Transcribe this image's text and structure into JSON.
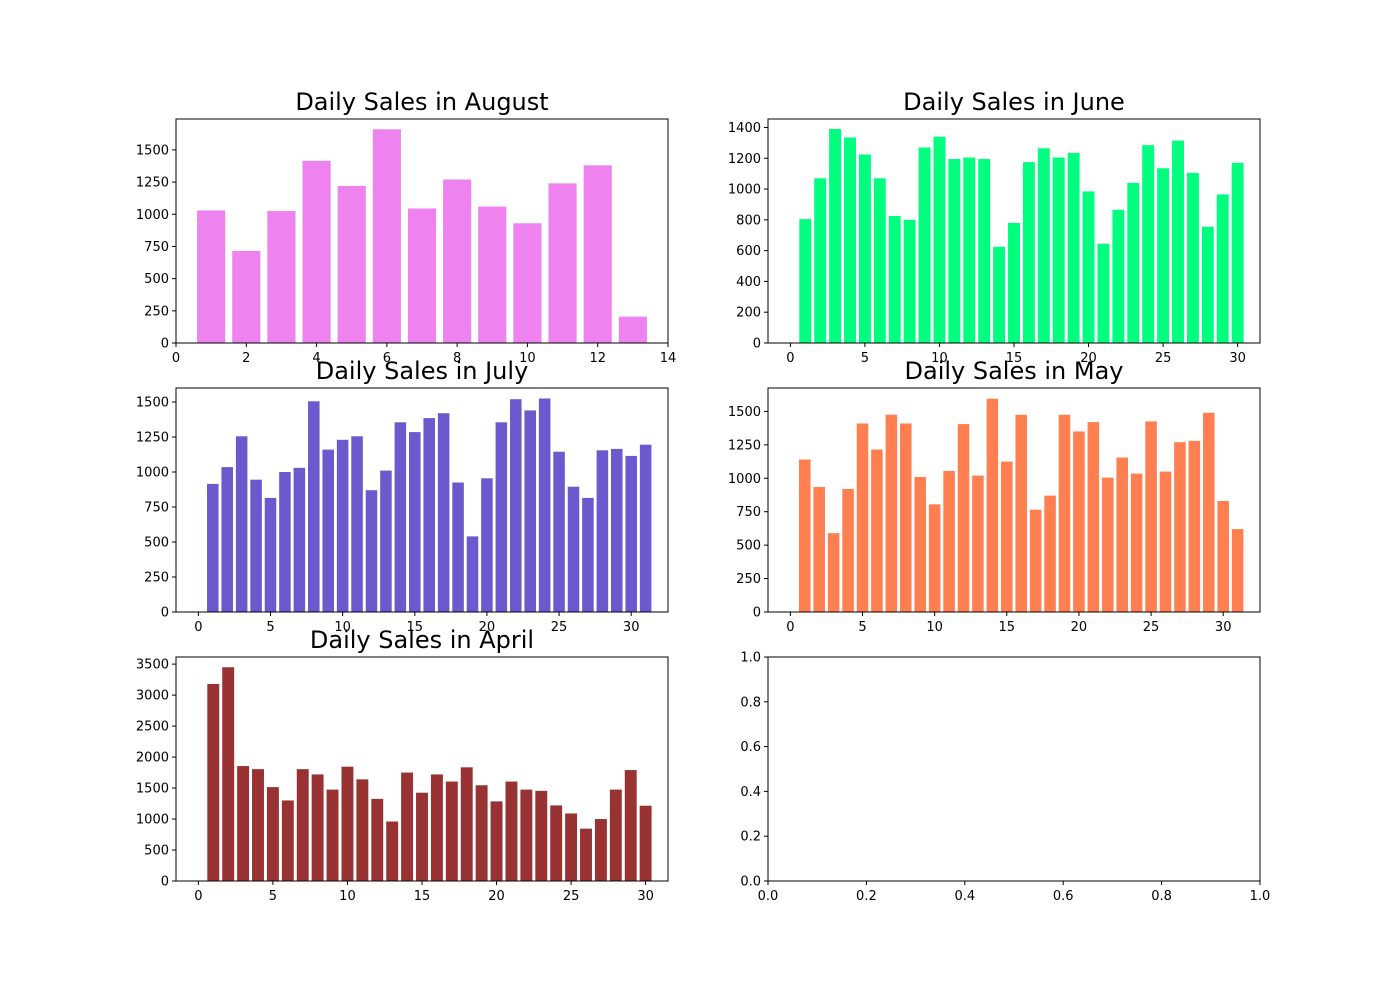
{
  "chart_data": [
    {
      "type": "bar",
      "title": "Daily Sales in August",
      "color": "#ee82ee",
      "x": [
        1,
        2,
        3,
        4,
        5,
        6,
        7,
        8,
        9,
        10,
        11,
        12,
        13
      ],
      "values": [
        1030,
        715,
        1025,
        1415,
        1220,
        1660,
        1045,
        1270,
        1060,
        930,
        1240,
        1380,
        205
      ],
      "xlim": [
        0,
        14
      ],
      "ylim": [
        0,
        1740
      ],
      "xticks": [
        0,
        2,
        4,
        6,
        8,
        10,
        12,
        14
      ],
      "yticks": [
        0,
        250,
        500,
        750,
        1000,
        1250,
        1500
      ],
      "xlabel": "",
      "ylabel": ""
    },
    {
      "type": "bar",
      "title": "Daily Sales in June",
      "color": "#00ff7f",
      "x": [
        1,
        2,
        3,
        4,
        5,
        6,
        7,
        8,
        9,
        10,
        11,
        12,
        13,
        14,
        15,
        16,
        17,
        18,
        19,
        20,
        21,
        22,
        23,
        24,
        25,
        26,
        27,
        28,
        29,
        30
      ],
      "values": [
        805,
        1070,
        1390,
        1335,
        1225,
        1070,
        825,
        800,
        1270,
        1340,
        1195,
        1205,
        1195,
        625,
        780,
        1175,
        1265,
        1205,
        1235,
        985,
        645,
        865,
        1040,
        1285,
        1135,
        1315,
        1105,
        755,
        965,
        1170
      ],
      "xlim": [
        -1.5,
        31.5
      ],
      "ylim": [
        0,
        1455
      ],
      "xticks": [
        0,
        5,
        10,
        15,
        20,
        25,
        30
      ],
      "yticks": [
        0,
        200,
        400,
        600,
        800,
        1000,
        1200,
        1400
      ],
      "xlabel": "",
      "ylabel": ""
    },
    {
      "type": "bar",
      "title": "Daily Sales in July",
      "color": "#6a5acd",
      "x": [
        1,
        2,
        3,
        4,
        5,
        6,
        7,
        8,
        9,
        10,
        11,
        12,
        13,
        14,
        15,
        16,
        17,
        18,
        19,
        20,
        21,
        22,
        23,
        24,
        25,
        26,
        27,
        28,
        29,
        30,
        31
      ],
      "values": [
        915,
        1035,
        1255,
        945,
        815,
        1000,
        1030,
        1505,
        1160,
        1230,
        1255,
        870,
        1010,
        1355,
        1285,
        1385,
        1420,
        925,
        540,
        955,
        1355,
        1520,
        1440,
        1525,
        1145,
        895,
        815,
        1155,
        1165,
        1115,
        1195
      ],
      "xlim": [
        -1.55,
        32.55
      ],
      "ylim": [
        0,
        1600
      ],
      "xticks": [
        0,
        5,
        10,
        15,
        20,
        25,
        30
      ],
      "yticks": [
        0,
        250,
        500,
        750,
        1000,
        1250,
        1500
      ],
      "xlabel": "",
      "ylabel": ""
    },
    {
      "type": "bar",
      "title": "Daily Sales in May",
      "color": "#ff7f50",
      "x": [
        1,
        2,
        3,
        4,
        5,
        6,
        7,
        8,
        9,
        10,
        11,
        12,
        13,
        14,
        15,
        16,
        17,
        18,
        19,
        20,
        21,
        22,
        23,
        24,
        25,
        26,
        27,
        28,
        29,
        30,
        31
      ],
      "values": [
        1140,
        935,
        590,
        920,
        1410,
        1215,
        1475,
        1410,
        1010,
        805,
        1055,
        1405,
        1020,
        1595,
        1125,
        1475,
        765,
        870,
        1475,
        1350,
        1420,
        1005,
        1155,
        1035,
        1425,
        1050,
        1270,
        1280,
        1490,
        830,
        620
      ],
      "xlim": [
        -1.55,
        32.55
      ],
      "ylim": [
        0,
        1675
      ],
      "xticks": [
        0,
        5,
        10,
        15,
        20,
        25,
        30
      ],
      "yticks": [
        0,
        250,
        500,
        750,
        1000,
        1250,
        1500
      ],
      "xlabel": "",
      "ylabel": ""
    },
    {
      "type": "bar",
      "title": "Daily Sales in April",
      "color": "#993333",
      "x": [
        1,
        2,
        3,
        4,
        5,
        6,
        7,
        8,
        9,
        10,
        11,
        12,
        13,
        14,
        15,
        16,
        17,
        18,
        19,
        20,
        21,
        22,
        23,
        24,
        25,
        26,
        27,
        28,
        29,
        30
      ],
      "values": [
        3180,
        3450,
        1855,
        1805,
        1515,
        1300,
        1805,
        1720,
        1475,
        1845,
        1640,
        1325,
        960,
        1750,
        1425,
        1720,
        1605,
        1835,
        1545,
        1285,
        1605,
        1475,
        1455,
        1220,
        1090,
        845,
        1000,
        1475,
        1790,
        1215
      ],
      "xlim": [
        -1.5,
        31.5
      ],
      "ylim": [
        0,
        3615
      ],
      "xticks": [
        0,
        5,
        10,
        15,
        20,
        25,
        30
      ],
      "yticks": [
        0,
        500,
        1000,
        1500,
        2000,
        2500,
        3000,
        3500
      ],
      "xlabel": "",
      "ylabel": ""
    },
    {
      "type": "bar",
      "title": "",
      "color": "#000000",
      "x": [],
      "values": [],
      "xlim": [
        0,
        1
      ],
      "ylim": [
        0,
        1
      ],
      "xticks": [
        0.0,
        0.2,
        0.4,
        0.6,
        0.8,
        1.0
      ],
      "yticks": [
        0.0,
        0.2,
        0.4,
        0.6,
        0.8,
        1.0
      ],
      "xtick_labels": [
        "0.0",
        "0.2",
        "0.4",
        "0.6",
        "0.8",
        "1.0"
      ],
      "ytick_labels": [
        "0.0",
        "0.2",
        "0.4",
        "0.6",
        "0.8",
        "1.0"
      ],
      "xlabel": "",
      "ylabel": ""
    }
  ]
}
